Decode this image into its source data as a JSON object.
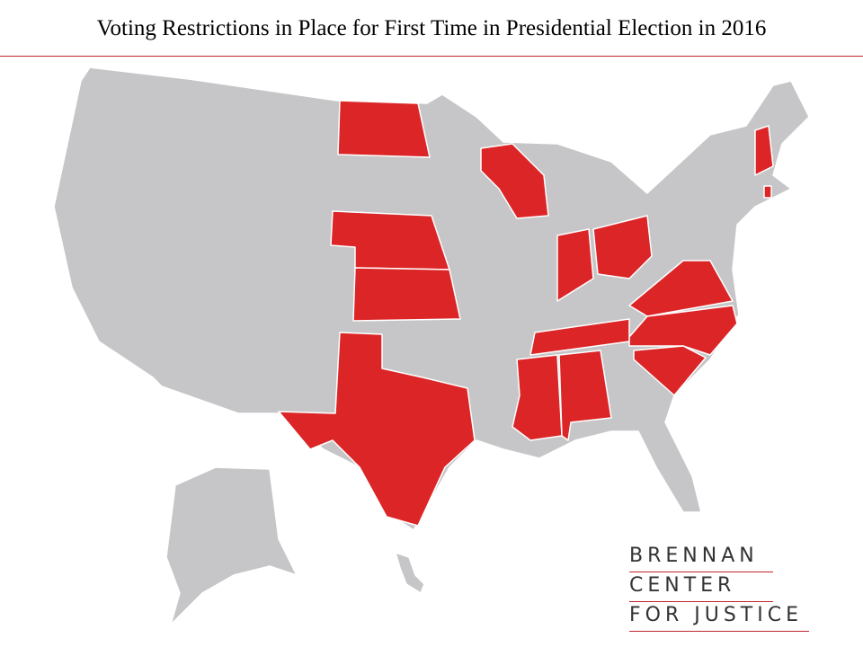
{
  "header": {
    "title": "Voting Restrictions in Place for First Time in Presidential Election in 2016"
  },
  "logo": {
    "lines": [
      "BRENNAN",
      "CENTER",
      "FOR JUSTICE"
    ]
  }
}
